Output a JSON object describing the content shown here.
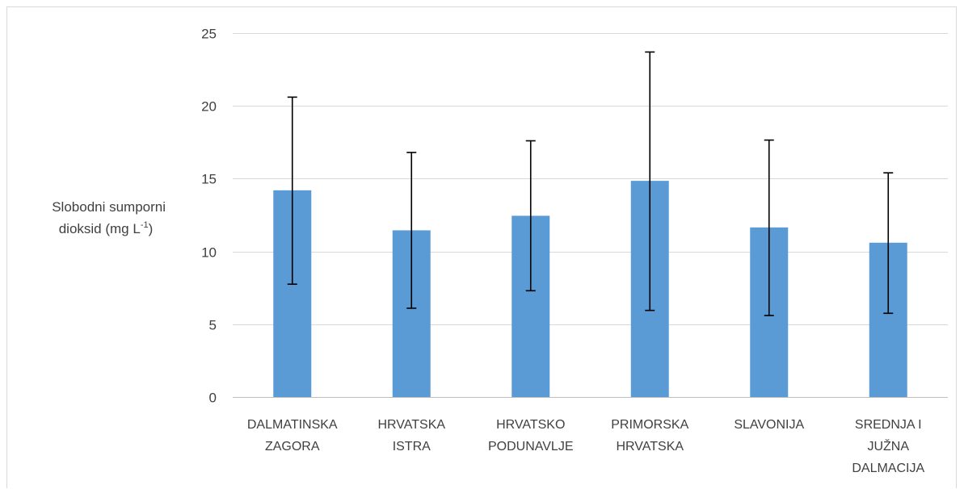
{
  "chart_data": {
    "type": "bar",
    "categories": [
      [
        "DALMATINSKA",
        "ZAGORA"
      ],
      [
        "HRVATSKA",
        "ISTRA"
      ],
      [
        "HRVATSKO",
        "PODUNAVLJE"
      ],
      [
        "PRIMORSKA",
        "HRVATSKA"
      ],
      [
        "SLAVONIJA"
      ],
      [
        "SREDNJA I",
        "JUŽNA",
        "DALMACIJA"
      ]
    ],
    "values": [
      14.2,
      11.45,
      12.45,
      14.85,
      11.65,
      10.6
    ],
    "error_low": [
      7.75,
      6.1,
      7.3,
      5.95,
      5.6,
      5.75
    ],
    "error_high": [
      20.6,
      16.8,
      17.6,
      23.7,
      17.65,
      15.4
    ],
    "title": "",
    "xlabel": "",
    "ylabel_lines": [
      "Slobodni sumporni",
      "dioksid (mg L"
    ],
    "ylabel_sup": "-1",
    "ylabel_tail": ")",
    "ylim": [
      0,
      25
    ],
    "yticks": [
      0,
      5,
      10,
      15,
      20,
      25
    ],
    "grid": true,
    "bar_color": "#5b9bd5",
    "grid_color": "#d9d9d9",
    "axis_color": "#bfbfbf",
    "errorbar_color": "#000000",
    "text_color": "#404040"
  }
}
